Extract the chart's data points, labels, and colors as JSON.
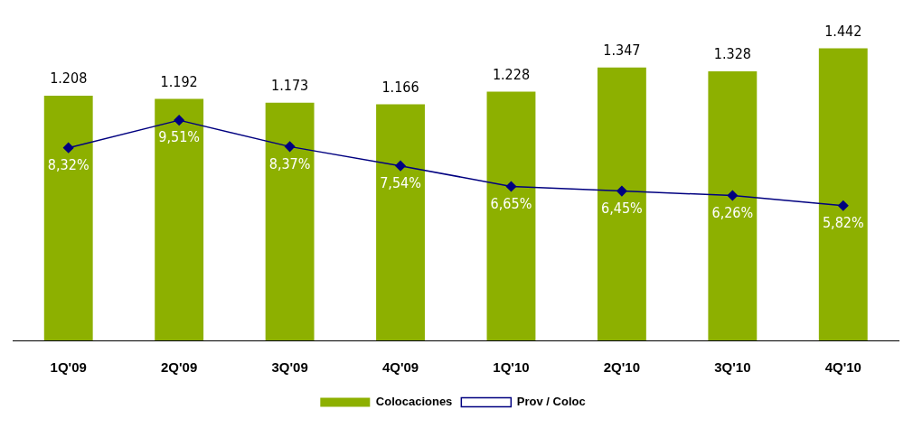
{
  "chart_data": {
    "type": "bar",
    "categories": [
      "1Q'09",
      "2Q'09",
      "3Q'09",
      "4Q'09",
      "1Q'10",
      "2Q'10",
      "3Q'10",
      "4Q'10"
    ],
    "series": [
      {
        "name": "Colocaciones",
        "color": "#8db000",
        "values": [
          1208,
          1192,
          1173,
          1166,
          1228,
          1347,
          1328,
          1442
        ],
        "value_labels": [
          "1.208",
          "1.192",
          "1.173",
          "1.166",
          "1.228",
          "1.347",
          "1.328",
          "1.442"
        ]
      },
      {
        "name": "Prov / Coloc",
        "type": "line",
        "axis": "y2",
        "color": "#000080",
        "marker": "diamond",
        "line_style": "solid",
        "values": [
          8.32,
          9.51,
          8.37,
          7.54,
          6.65,
          6.45,
          6.26,
          5.82
        ],
        "value_labels": [
          "8,32%",
          "9,51%",
          "8,37%",
          "7,54%",
          "6,65%",
          "6,45%",
          "6,26%",
          "5,82%"
        ]
      }
    ],
    "tick_labels": "x",
    "legend": "bottom",
    "grid": false
  }
}
